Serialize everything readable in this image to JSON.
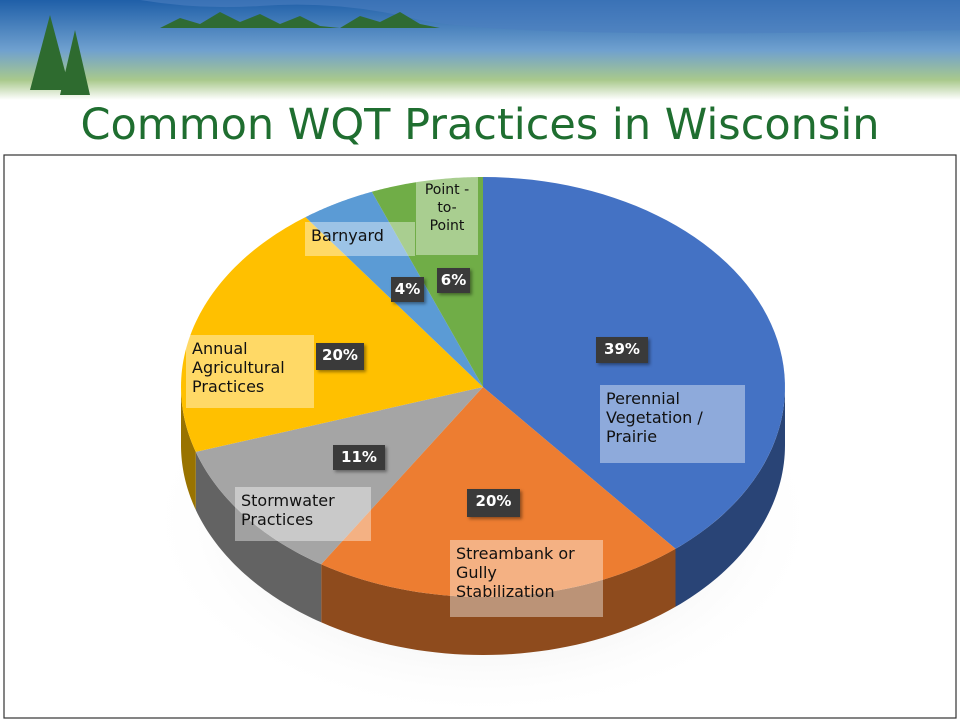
{
  "chart_data": {
    "type": "pie3d",
    "title": "Common WQT Practices in Wisconsin",
    "categories": [
      "Perennial Vegetation / Prairie",
      "Streambank or Gully Stabilization",
      "Stormwater Practices",
      "Annual Agricultural Practices",
      "Barnyard",
      "Point -to- Point"
    ],
    "values": [
      39,
      20,
      11,
      20,
      4,
      6
    ],
    "value_labels": [
      "39%",
      "20%",
      "11%",
      "20%",
      "4%",
      "6%"
    ],
    "colors": [
      "#4472c4",
      "#ed7d31",
      "#a5a5a5",
      "#ffc000",
      "#5b9bd5",
      "#70ad47"
    ]
  }
}
